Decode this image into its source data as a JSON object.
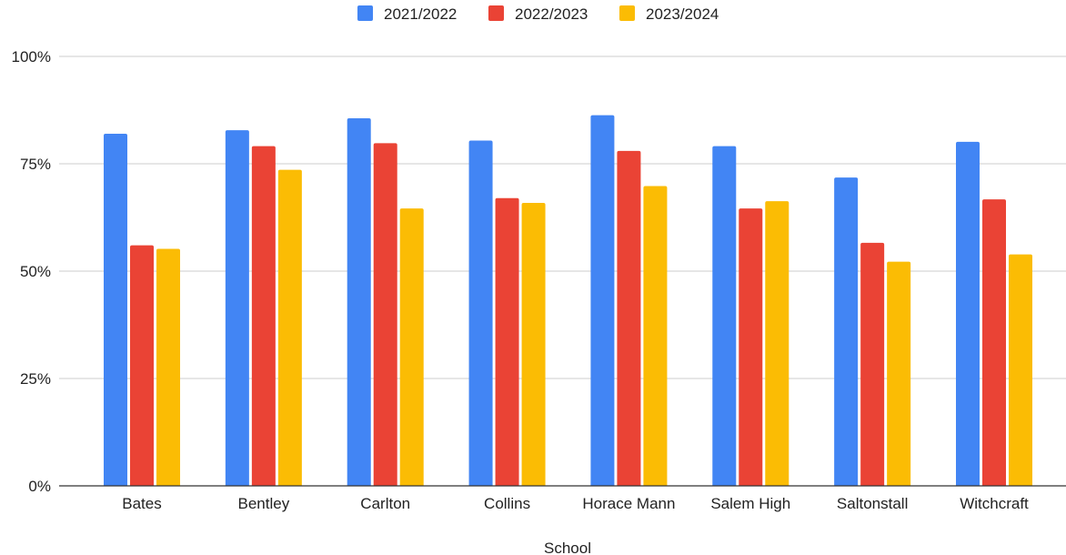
{
  "chart_data": {
    "type": "bar",
    "title": "",
    "xlabel": "School",
    "ylabel": "",
    "ylim": [
      0,
      100
    ],
    "y_ticks": [
      0,
      25,
      50,
      75,
      100
    ],
    "y_tick_labels": [
      "0%",
      "25%",
      "50%",
      "75%",
      "100%"
    ],
    "grid": true,
    "legend_position": "top",
    "categories": [
      "Bates",
      "Bentley",
      "Carlton",
      "Collins",
      "Horace Mann",
      "Salem High",
      "Saltonstall",
      "Witchcraft"
    ],
    "series": [
      {
        "name": "2021/2022",
        "color": "#4285f4",
        "values": [
          82,
          82.8,
          85.6,
          80.4,
          86.3,
          79.1,
          71.8,
          80.1
        ]
      },
      {
        "name": "2022/2023",
        "color": "#ea4335",
        "values": [
          56,
          79.1,
          79.8,
          67,
          78,
          64.6,
          56.6,
          66.7
        ]
      },
      {
        "name": "2023/2024",
        "color": "#fbbc04",
        "values": [
          55.2,
          73.6,
          64.6,
          65.9,
          69.8,
          66.3,
          52.2,
          53.9
        ]
      }
    ]
  }
}
